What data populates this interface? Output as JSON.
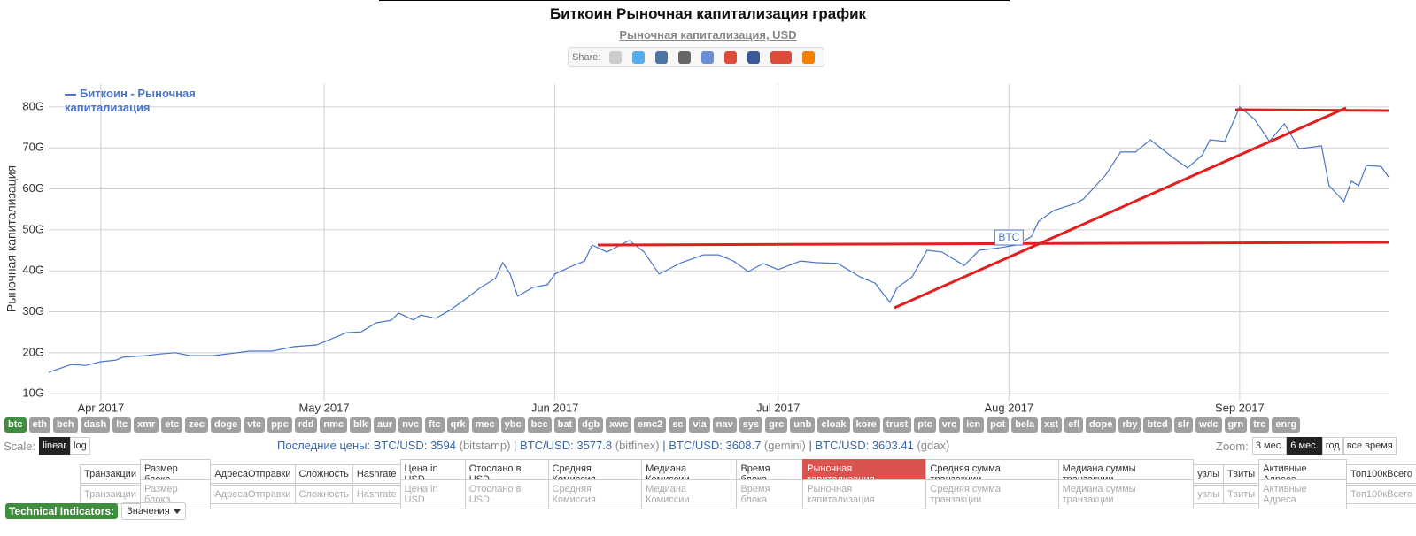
{
  "header": {
    "title": "Биткоин Рыночная капитализация график",
    "subtitle": "Рыночная капитализация, USD",
    "share_label": "Share:"
  },
  "chart_data": {
    "type": "line",
    "ylabel": "Рыночная капитализация",
    "x": [
      84,
      87,
      89,
      91,
      93,
      94,
      97,
      99,
      101,
      103,
      106,
      108,
      111,
      114,
      117,
      120,
      122,
      124,
      126,
      128,
      130,
      131,
      133,
      134,
      136,
      138,
      140,
      142,
      144,
      145,
      146,
      147,
      149,
      151,
      152,
      154,
      156,
      157,
      159,
      162,
      164,
      166,
      169,
      172,
      174,
      176,
      178,
      180,
      182,
      185,
      187,
      190,
      193,
      195,
      197,
      198,
      200,
      202,
      204,
      207,
      209,
      212,
      214,
      216,
      217,
      219,
      222,
      223,
      226,
      228,
      230,
      232,
      235,
      237,
      239,
      240,
      242,
      244,
      246,
      248,
      250,
      252,
      255,
      256,
      258,
      259,
      260,
      261,
      263,
      264
    ],
    "series": [
      {
        "name": "Биткоин - Рыночная капитализация",
        "color": "#4a74c9",
        "values": [
          15.2,
          17.1,
          16.9,
          17.8,
          18.2,
          18.9,
          19.3,
          19.7,
          20.0,
          19.3,
          19.3,
          19.7,
          20.4,
          20.4,
          21.5,
          21.9,
          23.4,
          24.9,
          25.1,
          27.3,
          27.9,
          29.7,
          28.0,
          29.2,
          28.4,
          30.5,
          33.1,
          35.9,
          38.1,
          42.0,
          39.2,
          33.8,
          35.9,
          36.6,
          39.2,
          40.9,
          42.4,
          46.3,
          44.6,
          47.4,
          44.6,
          39.2,
          42.0,
          43.9,
          43.9,
          42.4,
          39.8,
          41.8,
          40.3,
          42.4,
          42.0,
          41.8,
          38.5,
          37.0,
          32.3,
          35.9,
          38.5,
          45.0,
          44.6,
          41.3,
          45.0,
          45.7,
          46.3,
          48.3,
          52.1,
          54.7,
          56.5,
          57.5,
          63.4,
          69.0,
          69.0,
          72.0,
          67.7,
          65.1,
          68.3,
          72.0,
          71.6,
          80.0,
          77.0,
          71.6,
          75.9,
          69.8,
          70.5,
          60.8,
          56.9,
          61.9,
          60.8,
          65.7,
          65.5,
          62.9
        ]
      }
    ],
    "xlim": [
      84,
      264
    ],
    "xticks": [
      {
        "value": 91,
        "label": "Apr 2017"
      },
      {
        "value": 121,
        "label": "May 2017"
      },
      {
        "value": 152,
        "label": "Jun 2017"
      },
      {
        "value": 182,
        "label": "Jul 2017"
      },
      {
        "value": 213,
        "label": "Aug 2017"
      },
      {
        "value": 244,
        "label": "Sep 2017"
      }
    ],
    "ylim": [
      8.3,
      85.6
    ],
    "yticks": [
      {
        "value": 10,
        "label": "10G"
      },
      {
        "value": 20,
        "label": "20G"
      },
      {
        "value": 30,
        "label": "30G"
      },
      {
        "value": 40,
        "label": "40G"
      },
      {
        "value": 50,
        "label": "50G"
      },
      {
        "value": 60,
        "label": "60G"
      },
      {
        "value": 70,
        "label": "70G"
      },
      {
        "value": 80,
        "label": "80G"
      }
    ],
    "grid": true,
    "legend": "top-left",
    "annotations": [
      {
        "text": "BTC",
        "x": 213
      }
    ]
  },
  "coins": {
    "items": [
      "btc",
      "eth",
      "bch",
      "dash",
      "ltc",
      "xmr",
      "etc",
      "zec",
      "doge",
      "vtc",
      "ppc",
      "rdd",
      "nmc",
      "blk",
      "aur",
      "nvc",
      "ftc",
      "qrk",
      "mec",
      "ybc",
      "bcc",
      "bat",
      "dgb",
      "xwc",
      "emc2",
      "sc",
      "via",
      "nav",
      "sys",
      "grc",
      "unb",
      "cloak",
      "kore",
      "trust",
      "ptc",
      "vrc",
      "icn",
      "pot",
      "bela",
      "xst",
      "efl",
      "dope",
      "rby",
      "btcd",
      "slr",
      "wdc",
      "grn",
      "trc",
      "enrg"
    ],
    "active_index": 0
  },
  "scale": {
    "label": "Scale:",
    "options": [
      "linear",
      "log"
    ],
    "active_index": 0
  },
  "prices": {
    "label": "Последние цены:",
    "separator": "|",
    "items": [
      {
        "pair": "BTC/USD:",
        "price": 3594,
        "exchange": "(bitstamp)"
      },
      {
        "pair": "BTC/USD:",
        "price": 3577.8,
        "exchange": "(bitfinex)"
      },
      {
        "pair": "BTC/USD:",
        "price": 3608.7,
        "exchange": "(gemini)"
      },
      {
        "pair": "BTC/USD:",
        "price": 3603.41,
        "exchange": "(gdax)"
      }
    ]
  },
  "zoom": {
    "label": "Zoom:",
    "options": [
      "3 мес.",
      "6 мес.",
      "год",
      "все время"
    ],
    "active_index": 1
  },
  "tabs": {
    "items": [
      "Транзакции",
      "Размер блока",
      "АдресаОтправки",
      "Сложность",
      "Hashrate",
      "Цена in USD",
      "Отослано в USD",
      "Средняя Комиссия",
      "Медиана Комиссии",
      "Время блока",
      "Рыночная капитализация",
      "Средняя сумма транзакции",
      "Медиана суммы транзакции",
      "узлы",
      "Твиты",
      "Активные Адреса",
      "Топ100кВсего"
    ],
    "active_index": 10
  },
  "indicators": {
    "label": "Technical Indicators:",
    "dropdown": "Значения"
  }
}
